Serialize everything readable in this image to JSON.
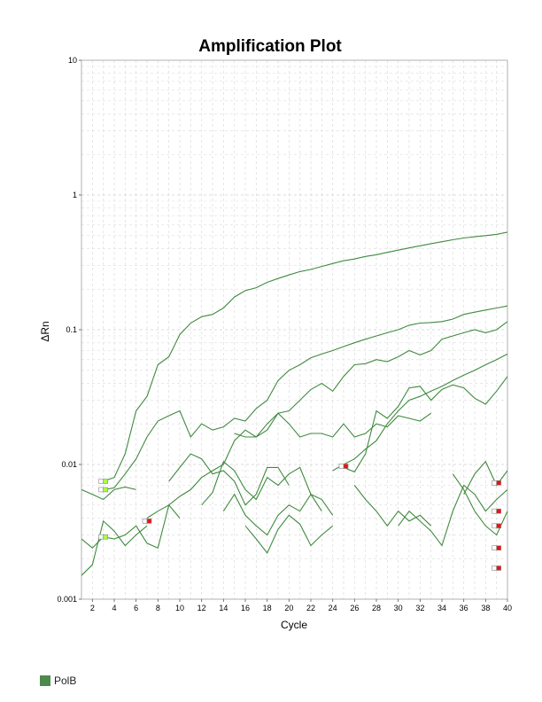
{
  "chart_data": {
    "type": "line",
    "title": "Amplification Plot",
    "xlabel": "Cycle",
    "ylabel": "ΔRn",
    "xlim": [
      1,
      40
    ],
    "ylim": [
      0.001,
      10
    ],
    "yscale": "log",
    "grid": true,
    "xticks": [
      2,
      4,
      6,
      8,
      10,
      12,
      14,
      16,
      18,
      20,
      22,
      24,
      26,
      28,
      30,
      32,
      34,
      36,
      38,
      40
    ],
    "yticks": [
      {
        "value": 0.001,
        "label": "0.001"
      },
      {
        "value": 0.01,
        "label": "0.01"
      },
      {
        "value": 0.1,
        "label": "0.1"
      },
      {
        "value": 1,
        "label": "1"
      },
      {
        "value": 10,
        "label": "10"
      }
    ],
    "legend": {
      "position": "bottom-left",
      "entries": [
        {
          "label": "PolB",
          "color": "#4e8a4e"
        }
      ]
    },
    "series_color": "#3f8a3f",
    "series": [
      {
        "x": [
          3,
          4,
          5,
          6,
          7,
          8,
          9,
          10,
          11,
          12,
          13,
          14,
          15,
          16,
          17,
          18,
          19,
          20,
          21,
          22,
          23,
          24,
          25,
          26,
          27,
          28,
          29,
          30,
          31,
          32,
          33,
          34,
          35,
          36,
          37,
          38,
          39,
          40
        ],
        "y": [
          0.0075,
          0.008,
          0.012,
          0.025,
          0.032,
          0.055,
          0.063,
          0.092,
          0.112,
          0.125,
          0.13,
          0.145,
          0.175,
          0.195,
          0.205,
          0.225,
          0.24,
          0.255,
          0.27,
          0.28,
          0.295,
          0.31,
          0.325,
          0.335,
          0.35,
          0.36,
          0.375,
          0.39,
          0.405,
          0.42,
          0.435,
          0.45,
          0.465,
          0.48,
          0.49,
          0.5,
          0.51,
          0.53
        ]
      },
      {
        "x": [
          3,
          4,
          5,
          6,
          7,
          8,
          9,
          10,
          11,
          12,
          13,
          14,
          15,
          16,
          17,
          18,
          19,
          20,
          21,
          22,
          23,
          24,
          25,
          26,
          27,
          28,
          29,
          30,
          31,
          32,
          33,
          34,
          35,
          36,
          37,
          38,
          39,
          40
        ],
        "y": [
          0.0065,
          0.0067,
          0.0085,
          0.011,
          0.016,
          0.021,
          0.023,
          0.025,
          0.016,
          0.02,
          0.018,
          0.019,
          0.022,
          0.021,
          0.026,
          0.03,
          0.042,
          0.05,
          0.055,
          0.062,
          0.066,
          0.07,
          0.075,
          0.08,
          0.085,
          0.09,
          0.095,
          0.1,
          0.108,
          0.112,
          0.113,
          0.115,
          0.12,
          0.13,
          0.135,
          0.14,
          0.145,
          0.15
        ]
      },
      {
        "x": [
          7,
          8,
          9,
          10,
          11,
          12,
          13,
          14,
          15,
          16,
          17,
          18,
          19,
          20,
          21,
          22,
          23,
          24,
          25,
          26,
          27,
          28,
          29,
          30,
          31,
          32,
          33,
          34,
          35,
          36,
          37,
          38,
          39,
          40
        ],
        "y": [
          0.004,
          0.0045,
          0.005,
          0.0058,
          0.0065,
          0.008,
          0.009,
          0.01,
          0.015,
          0.018,
          0.016,
          0.02,
          0.024,
          0.025,
          0.03,
          0.036,
          0.04,
          0.035,
          0.045,
          0.055,
          0.056,
          0.06,
          0.058,
          0.063,
          0.07,
          0.065,
          0.07,
          0.085,
          0.09,
          0.095,
          0.1,
          0.095,
          0.1,
          0.115
        ]
      },
      {
        "x": [
          24,
          25,
          26,
          27,
          28,
          29,
          30,
          31,
          32,
          33,
          34,
          35,
          36,
          37,
          38,
          39,
          40
        ],
        "y": [
          0.009,
          0.01,
          0.011,
          0.013,
          0.015,
          0.02,
          0.025,
          0.03,
          0.032,
          0.035,
          0.038,
          0.042,
          0.046,
          0.05,
          0.055,
          0.06,
          0.066
        ]
      },
      {
        "x": [
          25,
          26,
          27,
          28,
          29,
          30,
          31,
          32,
          33,
          34,
          35,
          36,
          37,
          38,
          39,
          40
        ],
        "y": [
          0.0095,
          0.0088,
          0.012,
          0.025,
          0.022,
          0.027,
          0.037,
          0.038,
          0.03,
          0.036,
          0.039,
          0.037,
          0.031,
          0.028,
          0.035,
          0.045
        ]
      },
      {
        "x": [
          15,
          16,
          17,
          18,
          19,
          20,
          21,
          22,
          23,
          24,
          25,
          26,
          27,
          28,
          29,
          30,
          31,
          32,
          33
        ],
        "y": [
          0.017,
          0.016,
          0.016,
          0.018,
          0.024,
          0.02,
          0.016,
          0.017,
          0.017,
          0.016,
          0.02,
          0.016,
          0.017,
          0.02,
          0.019,
          0.023,
          0.022,
          0.021,
          0.024
        ]
      },
      {
        "x": [
          1,
          2,
          3,
          4,
          5,
          6,
          7,
          8,
          9,
          10
        ],
        "y": [
          0.0028,
          0.0024,
          0.0029,
          0.0028,
          0.003,
          0.0035,
          0.0026,
          0.0024,
          0.005,
          0.004
        ]
      },
      {
        "x": [
          9,
          10,
          11,
          12,
          13,
          14,
          15,
          16,
          17,
          18,
          19,
          20
        ],
        "y": [
          0.0075,
          0.0095,
          0.012,
          0.011,
          0.0085,
          0.009,
          0.0075,
          0.005,
          0.006,
          0.0095,
          0.0095,
          0.007
        ]
      },
      {
        "x": [
          12,
          13,
          14,
          15,
          16,
          17,
          18,
          19,
          20,
          21,
          22,
          23
        ],
        "y": [
          0.005,
          0.0062,
          0.0105,
          0.009,
          0.0065,
          0.0055,
          0.008,
          0.007,
          0.0085,
          0.0095,
          0.006,
          0.0045
        ]
      },
      {
        "x": [
          1,
          2,
          3,
          4,
          5,
          6
        ],
        "y": [
          0.0065,
          0.006,
          0.0055,
          0.0065,
          0.0068,
          0.0065
        ]
      },
      {
        "x": [
          1,
          2,
          3,
          4,
          5,
          6,
          7
        ],
        "y": [
          0.0015,
          0.0018,
          0.0038,
          0.0032,
          0.0025,
          0.003,
          0.0035
        ]
      },
      {
        "x": [
          26,
          27,
          28,
          29,
          30,
          31,
          32,
          33
        ],
        "y": [
          0.007,
          0.0055,
          0.0045,
          0.0035,
          0.0045,
          0.0038,
          0.0042,
          0.0035
        ]
      },
      {
        "x": [
          36,
          37,
          38,
          39,
          40
        ],
        "y": [
          0.006,
          0.0085,
          0.0105,
          0.007,
          0.009
        ]
      },
      {
        "x": [
          35,
          36,
          37,
          38,
          39,
          40
        ],
        "y": [
          0.0085,
          0.0065,
          0.0045,
          0.0035,
          0.003,
          0.0045
        ]
      },
      {
        "x": [
          30,
          31,
          32,
          33,
          34,
          35,
          36,
          37,
          38,
          39,
          40
        ],
        "y": [
          0.0035,
          0.0045,
          0.0038,
          0.0032,
          0.0025,
          0.0045,
          0.007,
          0.006,
          0.0045,
          0.0055,
          0.0065
        ]
      },
      {
        "x": [
          14,
          15,
          16,
          17,
          18,
          19,
          20,
          21,
          22,
          23,
          24
        ],
        "y": [
          0.0045,
          0.006,
          0.0042,
          0.0035,
          0.003,
          0.0042,
          0.005,
          0.0045,
          0.006,
          0.0055,
          0.0042
        ]
      },
      {
        "x": [
          16,
          17,
          18,
          19,
          20,
          21,
          22,
          23,
          24
        ],
        "y": [
          0.0035,
          0.0028,
          0.0022,
          0.0033,
          0.0042,
          0.0036,
          0.0025,
          0.003,
          0.0035
        ]
      }
    ],
    "markers": [
      {
        "x": 3,
        "y": 0.0075,
        "color": "#aaff44"
      },
      {
        "x": 3,
        "y": 0.0065,
        "color": "#aaff44"
      },
      {
        "x": 3,
        "y": 0.0029,
        "color": "#aaff44"
      },
      {
        "x": 7,
        "y": 0.0038,
        "color": "#ee1111"
      },
      {
        "x": 25,
        "y": 0.0097,
        "color": "#ee1111"
      },
      {
        "x": 39,
        "y": 0.0073,
        "color": "#ee1111"
      },
      {
        "x": 39,
        "y": 0.0045,
        "color": "#ee1111"
      },
      {
        "x": 39,
        "y": 0.0035,
        "color": "#ee1111"
      },
      {
        "x": 39,
        "y": 0.0024,
        "color": "#ee1111"
      },
      {
        "x": 39,
        "y": 0.0017,
        "color": "#ee1111"
      }
    ]
  }
}
